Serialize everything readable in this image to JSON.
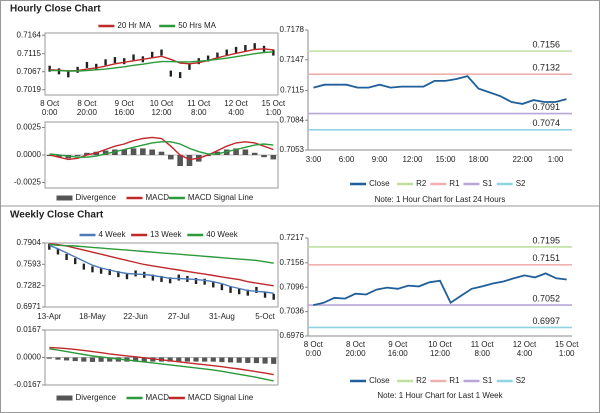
{
  "sections": [
    {
      "title": "Hourly Close Chart"
    },
    {
      "title": "Weekly Close Chart"
    }
  ],
  "chart_data": [
    {
      "type": "line",
      "legend": "top",
      "color": "#222222",
      "categories": [
        [
          "8 Oct",
          "0:00"
        ],
        null,
        null,
        null,
        [
          "8 Oct",
          "20:00"
        ],
        null,
        null,
        null,
        [
          "9 Oct",
          "16:00"
        ],
        null,
        null,
        null,
        [
          "10 Oct",
          "12:00"
        ],
        null,
        null,
        null,
        [
          "11 Oct",
          "8:00"
        ],
        null,
        null,
        null,
        [
          "12 Oct",
          "4:00"
        ],
        null,
        null,
        null,
        [
          "15 Oct",
          "1:00"
        ]
      ],
      "values": [
        0.7075,
        0.7068,
        0.706,
        0.7072,
        0.7085,
        0.708,
        0.7092,
        0.7098,
        0.7095,
        0.7105,
        0.71,
        0.7112,
        0.7118,
        0.7062,
        0.7058,
        0.708,
        0.7095,
        0.7102,
        0.711,
        0.7118,
        0.7125,
        0.713,
        0.7135,
        0.7128,
        0.7118
      ],
      "series": [
        {
          "name": "20 Hr MA",
          "color": "#c0282a",
          "values": [
            0.7072,
            0.7071,
            0.7069,
            0.707,
            0.7074,
            0.7077,
            0.7082,
            0.7088,
            0.7092,
            0.7096,
            0.71,
            0.7104,
            0.7108,
            0.71,
            0.709,
            0.7088,
            0.7091,
            0.7097,
            0.7104,
            0.711,
            0.7116,
            0.7121,
            0.7126,
            0.7128,
            0.7125
          ]
        },
        {
          "name": "50 Hrs MA",
          "color": "#2a9a3a",
          "values": [
            0.707,
            0.707,
            0.7069,
            0.7069,
            0.707,
            0.7072,
            0.7074,
            0.7077,
            0.708,
            0.7084,
            0.7087,
            0.7091,
            0.7094,
            0.7094,
            0.7093,
            0.7093,
            0.7095,
            0.7097,
            0.71,
            0.7103,
            0.7107,
            0.7111,
            0.7115,
            0.7118,
            0.712
          ]
        }
      ],
      "ylim": [
        0.7005,
        0.717
      ],
      "yticks": [
        0.7164,
        0.7115,
        0.7067,
        0.7019
      ]
    },
    {
      "type": "macd",
      "legend": "bottom",
      "series": [
        {
          "name": "Divergence",
          "type": "bar",
          "color": "#555555",
          "values": [
            -0.0001,
            -0.0002,
            -0.0003,
            -0.0001,
            0.0002,
            0.0003,
            0.0004,
            0.0005,
            0.0005,
            0.0006,
            0.0006,
            0.0005,
            0.0003,
            -0.0004,
            -0.001,
            -0.001,
            -0.0006,
            -0.0001,
            0.0003,
            0.0005,
            0.0006,
            0.0005,
            0.0002,
            -0.0002,
            -0.0004
          ]
        },
        {
          "name": "MACD",
          "color": "#c0282a",
          "values": [
            0.0,
            -0.0002,
            -0.0004,
            -0.0003,
            0.0,
            0.0002,
            0.0005,
            0.0008,
            0.001,
            0.0013,
            0.0015,
            0.0016,
            0.0015,
            0.0008,
            0.0,
            -0.0004,
            -0.0003,
            0.0,
            0.0004,
            0.0008,
            0.0011,
            0.0012,
            0.0011,
            0.0008,
            0.0005
          ]
        },
        {
          "name": "MACD Signal Line",
          "color": "#2a9a3a",
          "values": [
            0.0001,
            0.0,
            -0.0001,
            -0.0002,
            -0.0002,
            -0.0001,
            0.0001,
            0.0003,
            0.0005,
            0.0007,
            0.0009,
            0.0011,
            0.0012,
            0.0012,
            0.001,
            0.0006,
            0.0003,
            0.0001,
            0.0001,
            0.0003,
            0.0005,
            0.0007,
            0.0009,
            0.001,
            0.0009
          ]
        }
      ],
      "ylim": [
        -0.003,
        0.003
      ],
      "yticks": [
        0.0025,
        {
          "value": 0,
          "label": "0.0000"
        },
        -0.0025
      ]
    },
    {
      "type": "line",
      "legend": "bottom",
      "note": "Note: 1 Hour Chart for Last 24 Hours",
      "categories": [
        "3:00",
        null,
        null,
        "6:00",
        null,
        null,
        "9:00",
        null,
        null,
        "12:00",
        null,
        null,
        "15:00",
        null,
        null,
        "18:00",
        null,
        null,
        null,
        "22:00",
        null,
        null,
        "1:00",
        null
      ],
      "series": [
        {
          "name": "Close",
          "color": "#1f5f9a",
          "values": [
            0.7118,
            0.7121,
            0.7121,
            0.7121,
            0.7118,
            0.7118,
            0.7121,
            0.7118,
            0.7119,
            0.7119,
            0.7119,
            0.7125,
            0.7125,
            0.7127,
            0.713,
            0.7117,
            0.7113,
            0.7109,
            0.7103,
            0.7101,
            0.7105,
            0.7103,
            0.7103,
            0.7106
          ]
        }
      ],
      "levels": [
        {
          "name": "R2",
          "color": "#bfe0a0",
          "value": 0.7156
        },
        {
          "name": "R1",
          "color": "#f0b0b0",
          "value": 0.7132
        },
        {
          "name": "S1",
          "color": "#b8a6d8",
          "value": 0.7091
        },
        {
          "name": "S2",
          "color": "#90d4e4",
          "value": 0.7074
        }
      ],
      "ylim": [
        0.7053,
        0.7178
      ],
      "yticks": [
        0.7178,
        0.7147,
        0.7115,
        0.7084,
        0.7053
      ]
    },
    {
      "type": "line",
      "legend": "top",
      "color": "#222222",
      "categories": [
        "13-Apr",
        null,
        null,
        null,
        null,
        "18-May",
        null,
        null,
        null,
        null,
        "22-Jun",
        null,
        null,
        null,
        null,
        "27-Jul",
        null,
        null,
        null,
        null,
        "31-Aug",
        null,
        null,
        null,
        null,
        "5-Oct",
        null
      ],
      "values": [
        0.785,
        0.778,
        0.77,
        0.764,
        0.756,
        0.752,
        0.75,
        0.748,
        0.745,
        0.742,
        0.746,
        0.744,
        0.74,
        0.738,
        0.736,
        0.74,
        0.738,
        0.735,
        0.734,
        0.73,
        0.726,
        0.722,
        0.72,
        0.718,
        0.722,
        0.715,
        0.712
      ],
      "series": [
        {
          "name": "4 Week",
          "color": "#4a7ab8",
          "values": [
            0.787,
            0.782,
            0.776,
            0.77,
            0.764,
            0.758,
            0.754,
            0.751,
            0.748,
            0.746,
            0.745,
            0.7445,
            0.743,
            0.741,
            0.739,
            0.7385,
            0.738,
            0.737,
            0.736,
            0.734,
            0.731,
            0.727,
            0.724,
            0.721,
            0.72,
            0.719,
            0.717
          ]
        },
        {
          "name": "13 Week",
          "color": "#c0282a",
          "values": [
            0.789,
            0.788,
            0.786,
            0.783,
            0.78,
            0.777,
            0.774,
            0.771,
            0.768,
            0.765,
            0.762,
            0.759,
            0.757,
            0.755,
            0.753,
            0.751,
            0.749,
            0.747,
            0.745,
            0.743,
            0.741,
            0.739,
            0.737,
            0.734,
            0.732,
            0.73,
            0.728
          ]
        },
        {
          "name": "40 Week",
          "color": "#2a9a3a",
          "values": [
            0.788,
            0.787,
            0.7865,
            0.786,
            0.785,
            0.784,
            0.783,
            0.782,
            0.781,
            0.78,
            0.779,
            0.778,
            0.777,
            0.776,
            0.775,
            0.774,
            0.773,
            0.772,
            0.771,
            0.77,
            0.769,
            0.768,
            0.767,
            0.766,
            0.765,
            0.763,
            0.761
          ]
        }
      ],
      "ylim": [
        0.6971,
        0.7904
      ],
      "yticks": [
        0.7904,
        0.7593,
        0.7282,
        0.6971
      ]
    },
    {
      "type": "macd",
      "legend": "bottom",
      "series": [
        {
          "name": "Divergence",
          "type": "bar",
          "color": "#555555",
          "values": [
            -0.0007,
            -0.0013,
            -0.0018,
            -0.0022,
            -0.0025,
            -0.0027,
            -0.0026,
            -0.0025,
            -0.0025,
            -0.0025,
            -0.0025,
            -0.0025,
            -0.0025,
            -0.0025,
            -0.0025,
            -0.0025,
            -0.0025,
            -0.0025,
            -0.0025,
            -0.0025,
            -0.0028,
            -0.003,
            -0.0032,
            -0.0033,
            -0.0034,
            -0.0037,
            -0.0039
          ]
        },
        {
          "name": "MACD",
          "color": "#2a9a3a",
          "values": [
            0.0053,
            0.0045,
            0.0036,
            0.0027,
            0.0018,
            0.0009,
            0.0003,
            -0.0003,
            -0.0009,
            -0.0015,
            -0.0021,
            -0.0027,
            -0.0033,
            -0.0039,
            -0.0045,
            -0.0051,
            -0.0057,
            -0.0063,
            -0.0069,
            -0.0075,
            -0.0084,
            -0.0093,
            -0.0102,
            -0.0111,
            -0.012,
            -0.0132,
            -0.0143
          ]
        },
        {
          "name": "MACD Signal Line",
          "color": "#c0282a",
          "values": [
            0.006,
            0.0058,
            0.0054,
            0.0049,
            0.0043,
            0.0036,
            0.0029,
            0.0022,
            0.0016,
            0.001,
            0.0004,
            -0.0002,
            -0.0008,
            -0.0014,
            -0.002,
            -0.0026,
            -0.0032,
            -0.0038,
            -0.0044,
            -0.005,
            -0.0056,
            -0.0063,
            -0.007,
            -0.0078,
            -0.0086,
            -0.0095,
            -0.0104
          ]
        }
      ],
      "ylim": [
        -0.0167,
        0.0167
      ],
      "yticks": [
        0.0167,
        {
          "value": 0,
          "label": "0.0000"
        },
        -0.0167
      ]
    },
    {
      "type": "line",
      "legend": "bottom",
      "note": "Note: 1 Hour Chart for Last 1 Week",
      "categories": [
        [
          "8 Oct",
          "0:00"
        ],
        null,
        null,
        null,
        [
          "8 Oct",
          "20:00"
        ],
        null,
        null,
        null,
        [
          "9 Oct",
          "16:00"
        ],
        null,
        null,
        null,
        [
          "10 Oct",
          "12:00"
        ],
        null,
        null,
        null,
        [
          "11 Oct",
          "8:00"
        ],
        null,
        null,
        null,
        [
          "12 Oct",
          "4:00"
        ],
        null,
        null,
        null,
        [
          "15 Oct",
          "1:00"
        ]
      ],
      "series": [
        {
          "name": "Close",
          "color": "#1f5f9a",
          "values": [
            0.7052,
            0.7058,
            0.707,
            0.7068,
            0.708,
            0.7078,
            0.709,
            0.7095,
            0.7092,
            0.71,
            0.7098,
            0.7108,
            0.7112,
            0.7058,
            0.7075,
            0.7092,
            0.7098,
            0.7105,
            0.711,
            0.7118,
            0.7125,
            0.712,
            0.713,
            0.7118,
            0.7115
          ]
        }
      ],
      "levels": [
        {
          "name": "R2",
          "color": "#bfe0a0",
          "value": 0.7195
        },
        {
          "name": "R1",
          "color": "#f0b0b0",
          "value": 0.7151
        },
        {
          "name": "S1",
          "color": "#b8a6d8",
          "value": 0.7052
        },
        {
          "name": "S2",
          "color": "#90d4e4",
          "value": 0.6997
        }
      ],
      "ylim": [
        0.6976,
        0.7217
      ],
      "yticks": [
        0.7217,
        0.7156,
        0.7096,
        0.7036,
        0.6976
      ]
    }
  ]
}
